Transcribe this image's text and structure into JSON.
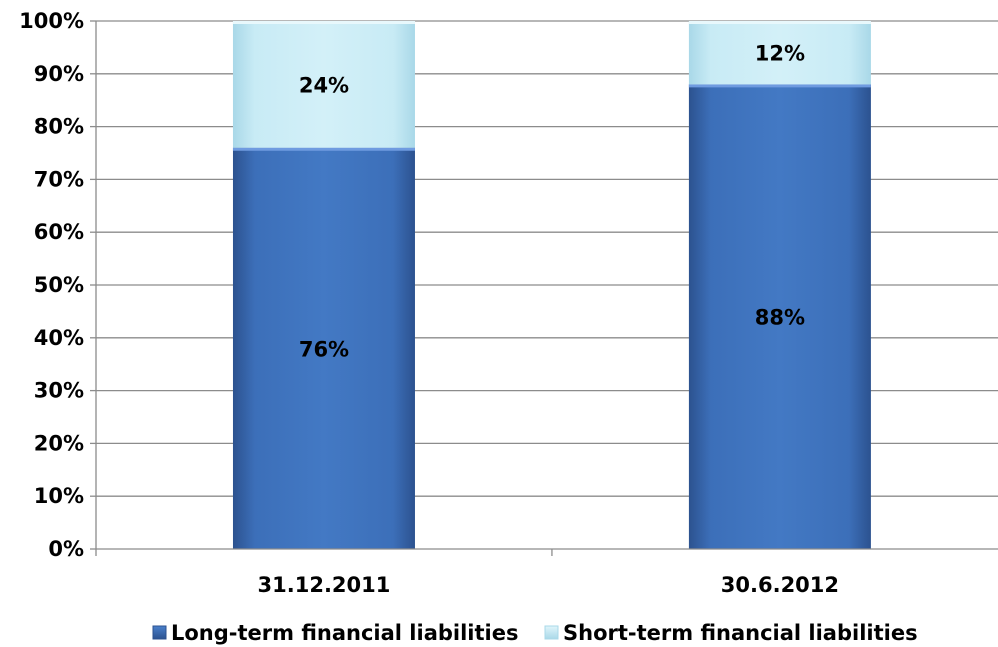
{
  "chart_data": {
    "type": "bar",
    "stacked": true,
    "categories": [
      "31.12.2011",
      "30.6.2012"
    ],
    "series": [
      {
        "name": "Long-term financial liabilities",
        "values": [
          76,
          88
        ],
        "labels": [
          "76%",
          "88%"
        ],
        "color": "#3b6cba"
      },
      {
        "name": "Short-term financial liabilities",
        "values": [
          24,
          12
        ],
        "labels": [
          "24%",
          "12%"
        ],
        "color": "#c7eaf4"
      }
    ],
    "ylim": [
      0,
      100
    ],
    "yticks": [
      "0%",
      "10%",
      "20%",
      "30%",
      "40%",
      "50%",
      "60%",
      "70%",
      "80%",
      "90%",
      "100%"
    ],
    "grid": true,
    "legend": "bottom",
    "title": "",
    "xlabel": "",
    "ylabel": ""
  }
}
